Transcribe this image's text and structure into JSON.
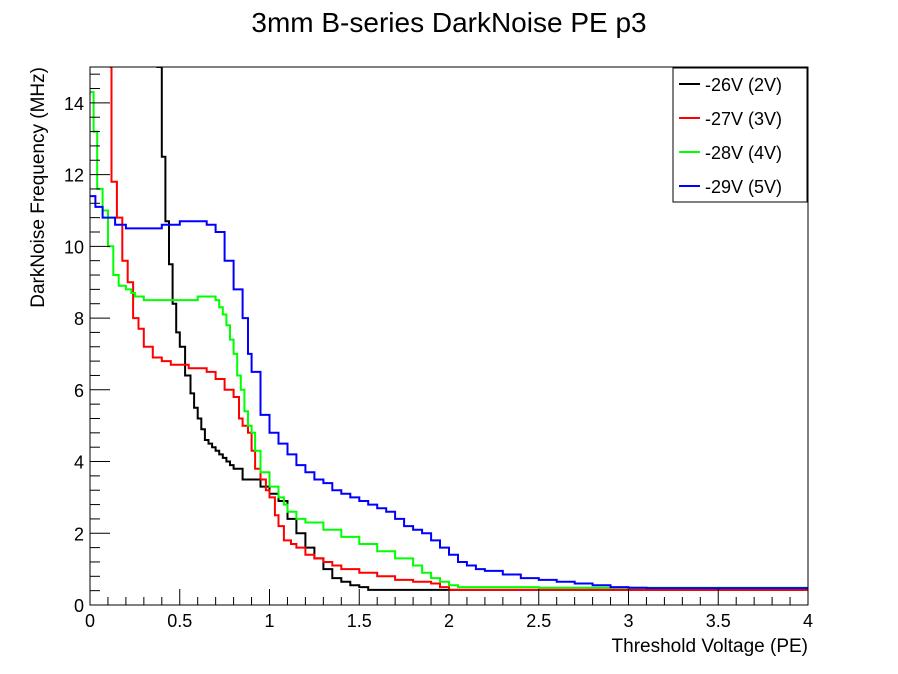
{
  "chart_data": {
    "type": "line",
    "title": "3mm B-series DarkNoise PE p3",
    "xlabel": "Threshold Voltage (PE)",
    "ylabel": "DarkNoise Frequency (MHz)",
    "xlim": [
      0,
      4
    ],
    "ylim": [
      0,
      15
    ],
    "x_ticks": [
      "0",
      "0.5",
      "1",
      "1.5",
      "2",
      "2.5",
      "3",
      "3.5",
      "4"
    ],
    "y_ticks": [
      "0",
      "2",
      "4",
      "6",
      "8",
      "10",
      "12",
      "14"
    ],
    "grid": false,
    "legend_position": "top-right",
    "series": [
      {
        "name": "-26V (2V)",
        "color": "#000000",
        "x": [
          0.37,
          0.4,
          0.42,
          0.44,
          0.46,
          0.48,
          0.5,
          0.53,
          0.56,
          0.58,
          0.6,
          0.62,
          0.64,
          0.66,
          0.68,
          0.7,
          0.72,
          0.74,
          0.76,
          0.78,
          0.8,
          0.85,
          0.9,
          0.95,
          1.0,
          1.05,
          1.1,
          1.15,
          1.2,
          1.25,
          1.3,
          1.35,
          1.4,
          1.45,
          1.5,
          1.55,
          1.6,
          2.0,
          2.5,
          3.0,
          3.5,
          4.0
        ],
        "y": [
          15,
          12.5,
          10.7,
          9.5,
          8.4,
          7.6,
          7.2,
          6.4,
          5.9,
          5.5,
          5.2,
          4.9,
          4.6,
          4.5,
          4.4,
          4.3,
          4.2,
          4.1,
          4.0,
          3.9,
          3.8,
          3.5,
          3.5,
          3.3,
          3.1,
          2.9,
          2.4,
          2.0,
          1.6,
          1.3,
          1.0,
          0.75,
          0.65,
          0.55,
          0.5,
          0.42,
          0.42,
          0.42,
          0.42,
          0.42,
          0.42,
          0.42
        ]
      },
      {
        "name": "-27V (3V)",
        "color": "#ff0000",
        "x": [
          0.11,
          0.12,
          0.15,
          0.18,
          0.21,
          0.24,
          0.27,
          0.3,
          0.35,
          0.4,
          0.45,
          0.5,
          0.55,
          0.6,
          0.65,
          0.7,
          0.75,
          0.8,
          0.83,
          0.85,
          0.88,
          0.9,
          0.92,
          0.95,
          0.98,
          1.0,
          1.03,
          1.05,
          1.08,
          1.12,
          1.15,
          1.2,
          1.25,
          1.3,
          1.35,
          1.4,
          1.5,
          1.6,
          1.7,
          1.8,
          1.9,
          1.95,
          2.0,
          2.5,
          3.0,
          3.5,
          4.0
        ],
        "y": [
          15,
          11.8,
          10.8,
          9.6,
          9.0,
          8.0,
          7.7,
          7.2,
          6.9,
          6.8,
          6.7,
          6.7,
          6.6,
          6.6,
          6.5,
          6.3,
          6.0,
          5.8,
          5.2,
          5.0,
          4.8,
          4.3,
          3.8,
          3.5,
          3.2,
          3.0,
          2.5,
          2.2,
          1.8,
          1.7,
          1.6,
          1.4,
          1.3,
          1.2,
          1.1,
          1.0,
          0.9,
          0.8,
          0.7,
          0.65,
          0.6,
          0.5,
          0.42,
          0.42,
          0.42,
          0.42,
          0.42
        ]
      },
      {
        "name": "-28V (4V)",
        "color": "#00ff00",
        "x": [
          0.0,
          0.02,
          0.04,
          0.07,
          0.1,
          0.13,
          0.16,
          0.2,
          0.23,
          0.25,
          0.3,
          0.35,
          0.4,
          0.45,
          0.5,
          0.55,
          0.6,
          0.63,
          0.66,
          0.7,
          0.72,
          0.74,
          0.76,
          0.78,
          0.8,
          0.82,
          0.84,
          0.86,
          0.88,
          0.9,
          0.92,
          0.95,
          1.0,
          1.05,
          1.08,
          1.1,
          1.15,
          1.2,
          1.3,
          1.4,
          1.5,
          1.6,
          1.7,
          1.8,
          1.85,
          1.9,
          1.95,
          2.0,
          2.05,
          2.5,
          3.0,
          3.5,
          4.0
        ],
        "y": [
          14.3,
          13.2,
          11.6,
          11.0,
          10.0,
          9.2,
          8.9,
          8.8,
          8.7,
          8.6,
          8.5,
          8.5,
          8.5,
          8.5,
          8.5,
          8.5,
          8.6,
          8.6,
          8.6,
          8.5,
          8.3,
          8.1,
          7.8,
          7.4,
          7.0,
          6.4,
          6.0,
          5.4,
          5.0,
          4.8,
          4.3,
          3.7,
          3.3,
          3.0,
          2.8,
          2.6,
          2.4,
          2.3,
          2.1,
          1.9,
          1.7,
          1.5,
          1.3,
          1.1,
          0.9,
          0.75,
          0.65,
          0.55,
          0.5,
          0.48,
          0.48,
          0.48,
          0.48
        ]
      },
      {
        "name": "-29V (5V)",
        "color": "#0000ff",
        "x": [
          0.0,
          0.03,
          0.07,
          0.14,
          0.2,
          0.3,
          0.4,
          0.5,
          0.6,
          0.65,
          0.7,
          0.75,
          0.8,
          0.85,
          0.88,
          0.9,
          0.95,
          1.0,
          1.05,
          1.1,
          1.15,
          1.2,
          1.25,
          1.3,
          1.35,
          1.4,
          1.45,
          1.5,
          1.55,
          1.6,
          1.65,
          1.7,
          1.75,
          1.8,
          1.85,
          1.9,
          1.95,
          2.0,
          2.05,
          2.1,
          2.15,
          2.2,
          2.3,
          2.4,
          2.5,
          2.6,
          2.7,
          2.8,
          2.9,
          3.0,
          3.1,
          3.5,
          4.0
        ],
        "y": [
          11.4,
          11.1,
          10.8,
          10.6,
          10.5,
          10.5,
          10.6,
          10.7,
          10.7,
          10.6,
          10.4,
          9.6,
          8.8,
          8.0,
          7.0,
          6.5,
          5.3,
          4.8,
          4.5,
          4.2,
          3.9,
          3.7,
          3.5,
          3.4,
          3.2,
          3.1,
          3.0,
          2.9,
          2.8,
          2.7,
          2.6,
          2.4,
          2.2,
          2.1,
          2.0,
          1.8,
          1.6,
          1.4,
          1.2,
          1.1,
          1.0,
          0.95,
          0.85,
          0.75,
          0.7,
          0.65,
          0.6,
          0.55,
          0.5,
          0.48,
          0.47,
          0.47,
          0.47
        ]
      }
    ]
  }
}
